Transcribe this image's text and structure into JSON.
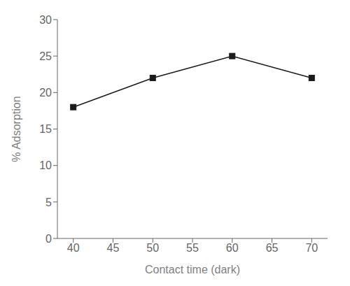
{
  "chart_data": {
    "type": "line",
    "x": [
      40,
      50,
      60,
      70
    ],
    "values": [
      18,
      22,
      25,
      22
    ],
    "xlabel": "Contact time (dark)",
    "ylabel": "% Adsorption",
    "xlim": [
      38,
      72
    ],
    "ylim": [
      0,
      30
    ],
    "xticks": [
      40,
      45,
      50,
      55,
      60,
      65,
      70
    ],
    "yticks": [
      0,
      5,
      10,
      15,
      20,
      25,
      30
    ],
    "color": "#1a1a1a",
    "marker": "square",
    "grid": false
  }
}
